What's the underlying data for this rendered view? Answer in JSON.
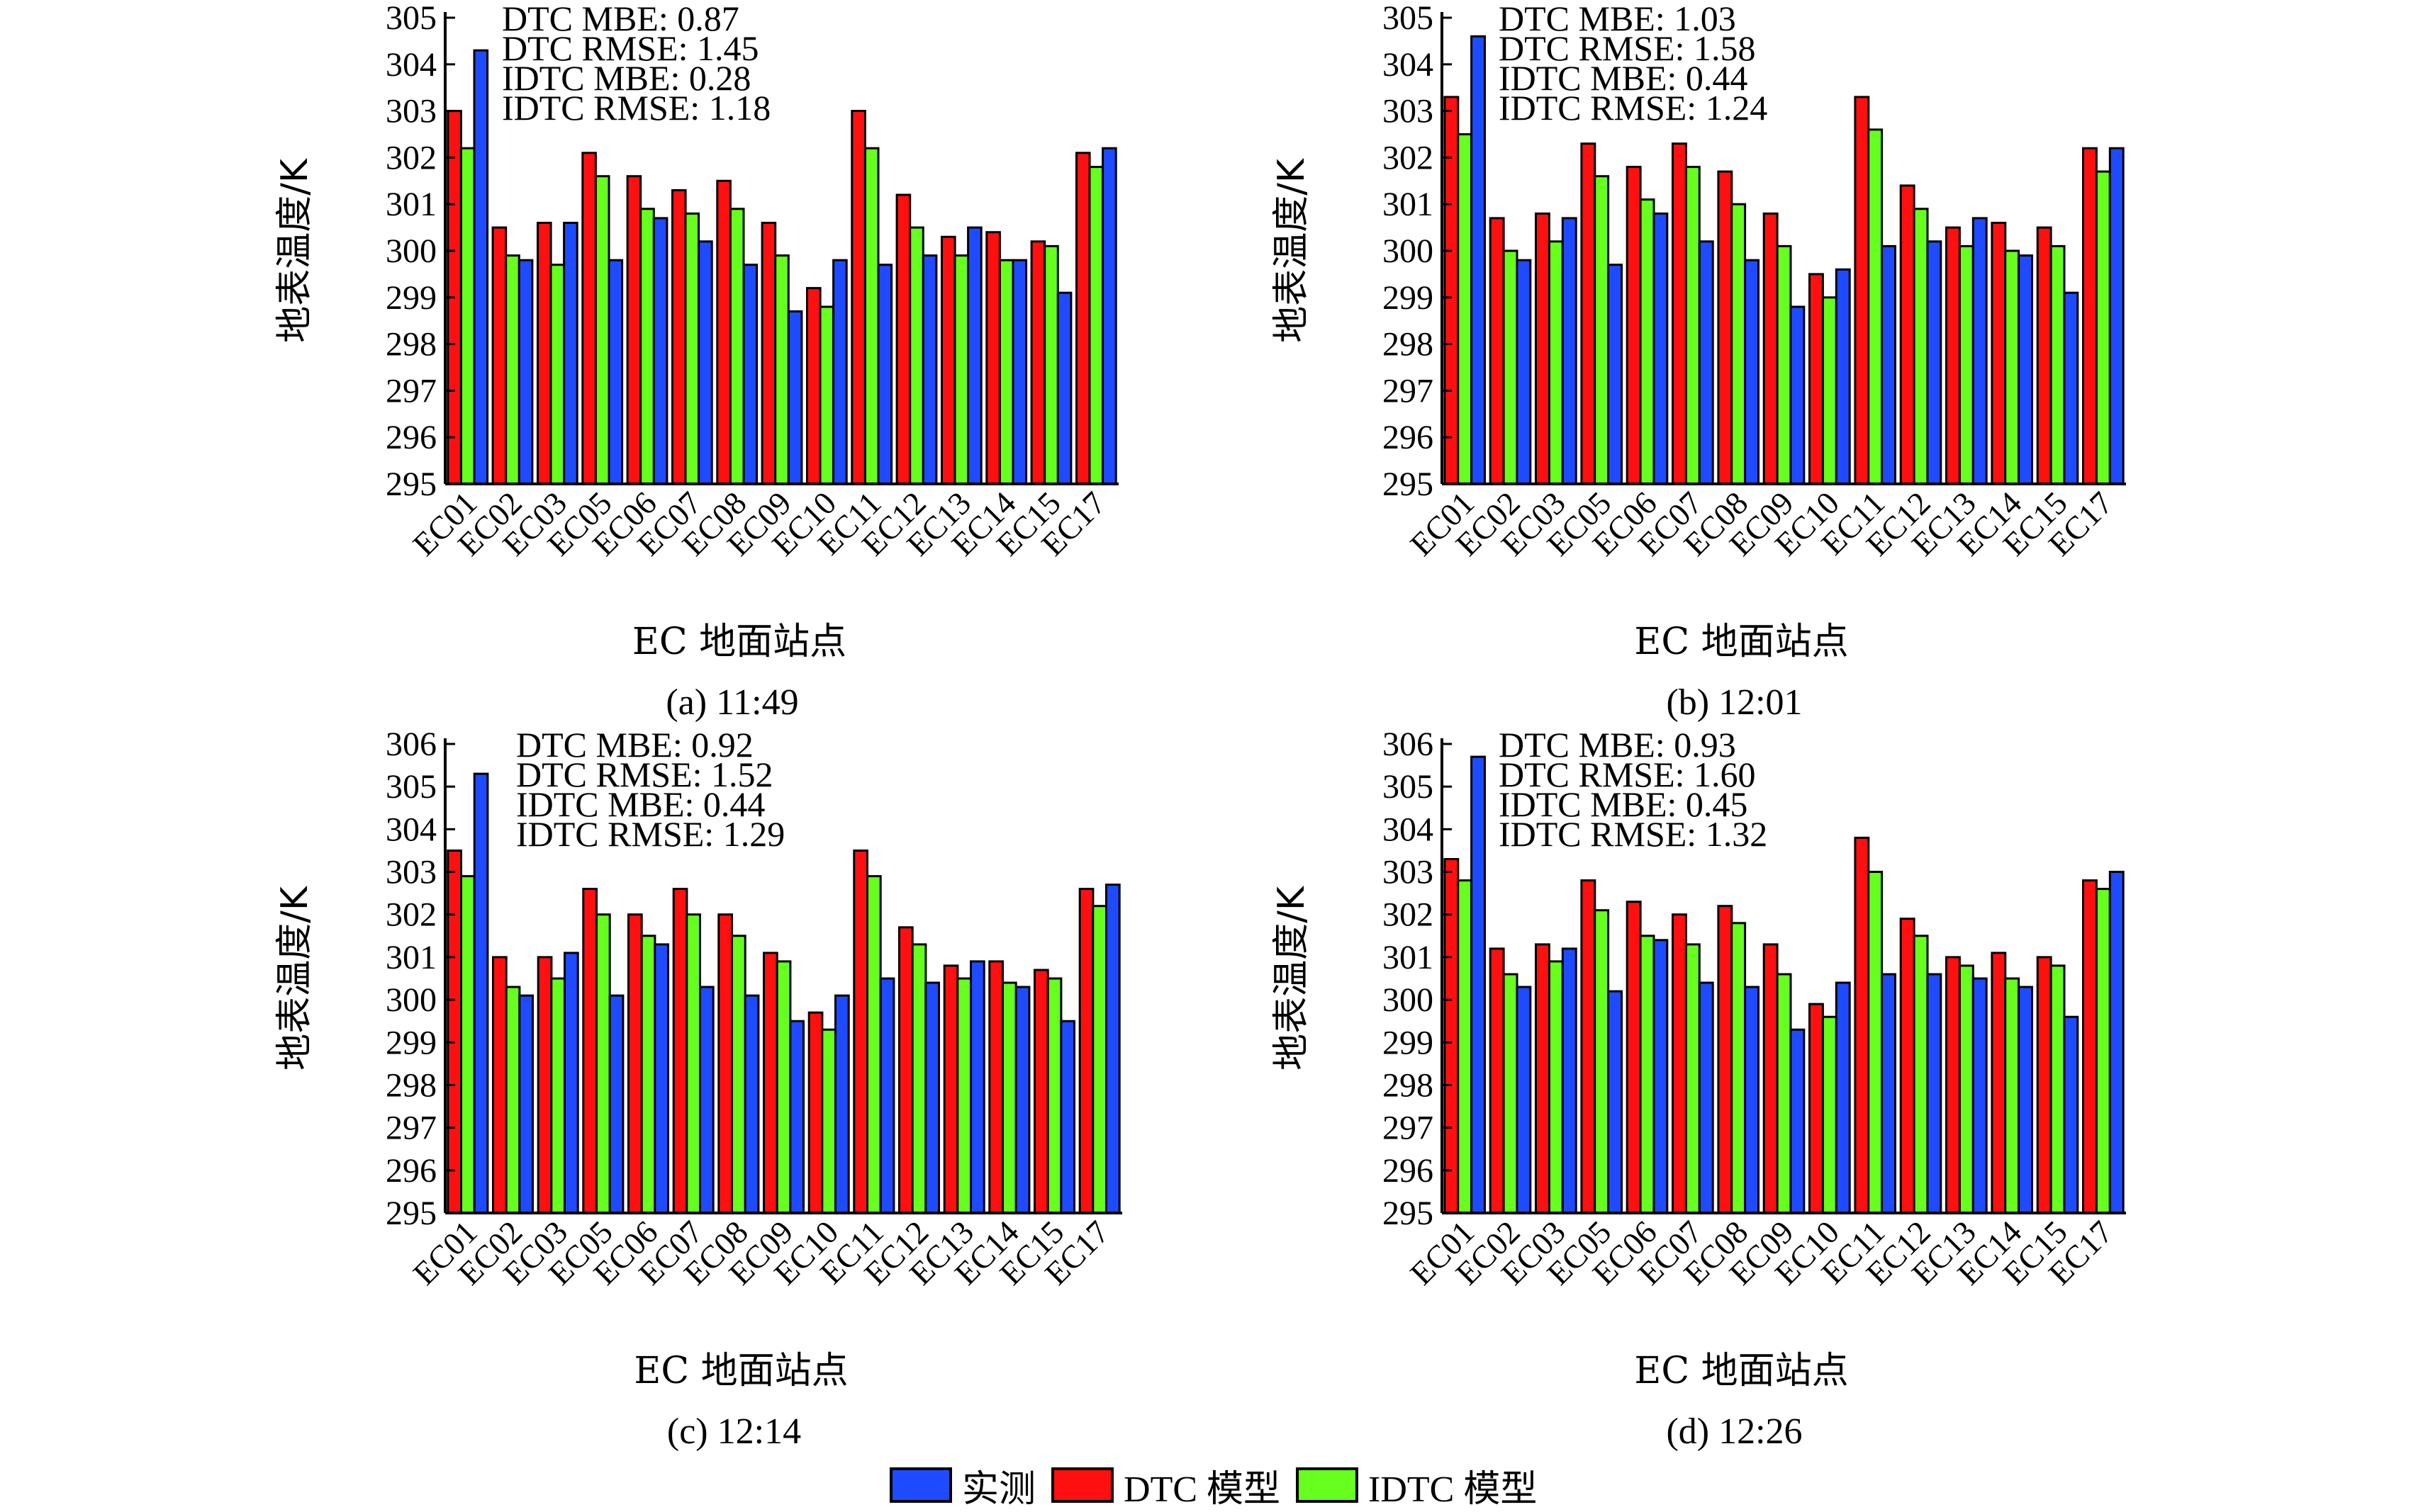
{
  "colors": {
    "measured": "#1e4bff",
    "dtc": "#ff1010",
    "idtc": "#66ff1e",
    "axis": "#000000"
  },
  "legend": {
    "measured": "实测",
    "dtc": "DTC 模型",
    "idtc": "IDTC 模型"
  },
  "chart_data": [
    {
      "type": "bar",
      "caption": "(a) 11:49",
      "xlabel": "EC 地面站点",
      "ylabel": "地表温度/K",
      "ylim": [
        295,
        305
      ],
      "yticks": [
        "295",
        "296",
        "297",
        "298",
        "299",
        "300",
        "301",
        "302",
        "303",
        "304",
        "305"
      ],
      "categories": [
        "EC01",
        "EC02",
        "EC03",
        "EC05",
        "EC06",
        "EC07",
        "EC08",
        "EC09",
        "EC10",
        "EC11",
        "EC12",
        "EC13",
        "EC14",
        "EC15",
        "EC17"
      ],
      "annotations": [
        "DTC MBE: 0.87",
        "DTC RMSE: 1.45",
        "IDTC MBE: 0.28",
        "IDTC RMSE: 1.18"
      ],
      "series": [
        {
          "name": "DTC 模型",
          "values": [
            303.0,
            300.5,
            300.6,
            302.1,
            301.6,
            301.3,
            301.5,
            300.6,
            299.2,
            303.0,
            301.2,
            300.3,
            300.4,
            300.2,
            302.1
          ]
        },
        {
          "name": "IDTC 模型",
          "values": [
            302.2,
            299.9,
            299.7,
            301.6,
            300.9,
            300.8,
            300.9,
            299.9,
            298.8,
            302.2,
            300.5,
            299.9,
            299.8,
            300.1,
            301.8
          ]
        },
        {
          "name": "实测",
          "values": [
            304.3,
            299.8,
            300.6,
            299.8,
            300.7,
            300.2,
            299.7,
            298.7,
            299.8,
            299.7,
            299.9,
            300.5,
            299.8,
            299.1,
            302.2
          ]
        }
      ]
    },
    {
      "type": "bar",
      "caption": "(b) 12:01",
      "xlabel": "EC 地面站点",
      "ylabel": "地表温度/K",
      "ylim": [
        295,
        305
      ],
      "yticks": [
        "295",
        "296",
        "297",
        "298",
        "299",
        "300",
        "301",
        "302",
        "303",
        "304",
        "305"
      ],
      "categories": [
        "EC01",
        "EC02",
        "EC03",
        "EC05",
        "EC06",
        "EC07",
        "EC08",
        "EC09",
        "EC10",
        "EC11",
        "EC12",
        "EC13",
        "EC14",
        "EC15",
        "EC17"
      ],
      "annotations": [
        "DTC MBE: 1.03",
        "DTC RMSE: 1.58",
        "IDTC MBE: 0.44",
        "IDTC RMSE: 1.24"
      ],
      "series": [
        {
          "name": "DTC 模型",
          "values": [
            303.3,
            300.7,
            300.8,
            302.3,
            301.8,
            302.3,
            301.7,
            300.8,
            299.5,
            303.3,
            301.4,
            300.5,
            300.6,
            300.5,
            302.2
          ]
        },
        {
          "name": "IDTC 模型",
          "values": [
            302.5,
            300.0,
            300.2,
            301.6,
            301.1,
            301.8,
            301.0,
            300.1,
            299.0,
            302.6,
            300.9,
            300.1,
            300.0,
            300.1,
            301.7
          ]
        },
        {
          "name": "实测",
          "values": [
            304.6,
            299.8,
            300.7,
            299.7,
            300.8,
            300.2,
            299.8,
            298.8,
            299.6,
            300.1,
            300.2,
            300.7,
            299.9,
            299.1,
            302.2
          ]
        }
      ]
    },
    {
      "type": "bar",
      "caption": "(c) 12:14",
      "xlabel": "EC 地面站点",
      "ylabel": "地表温度/K",
      "ylim": [
        295,
        306
      ],
      "yticks": [
        "295",
        "296",
        "297",
        "298",
        "299",
        "300",
        "301",
        "302",
        "303",
        "304",
        "305",
        "306"
      ],
      "categories": [
        "EC01",
        "EC02",
        "EC03",
        "EC05",
        "EC06",
        "EC07",
        "EC08",
        "EC09",
        "EC10",
        "EC11",
        "EC12",
        "EC13",
        "EC14",
        "EC15",
        "EC17"
      ],
      "annotations": [
        "DTC MBE: 0.92",
        "DTC RMSE: 1.52",
        "IDTC MBE: 0.44",
        "IDTC RMSE: 1.29"
      ],
      "series": [
        {
          "name": "DTC 模型",
          "values": [
            303.5,
            301.0,
            301.0,
            302.6,
            302.0,
            302.6,
            302.0,
            301.1,
            299.7,
            303.5,
            301.7,
            300.8,
            300.9,
            300.7,
            302.6
          ]
        },
        {
          "name": "IDTC 模型",
          "values": [
            302.9,
            300.3,
            300.5,
            302.0,
            301.5,
            302.0,
            301.5,
            300.9,
            299.3,
            302.9,
            301.3,
            300.5,
            300.4,
            300.5,
            302.2
          ]
        },
        {
          "name": "实测",
          "values": [
            305.3,
            300.1,
            301.1,
            300.1,
            301.3,
            300.3,
            300.1,
            299.5,
            300.1,
            300.5,
            300.4,
            300.9,
            300.3,
            299.5,
            302.7
          ]
        }
      ]
    },
    {
      "type": "bar",
      "caption": "(d) 12:26",
      "xlabel": "EC 地面站点",
      "ylabel": "地表温度/K",
      "ylim": [
        295,
        306
      ],
      "yticks": [
        "295",
        "296",
        "297",
        "298",
        "299",
        "300",
        "301",
        "302",
        "303",
        "304",
        "305",
        "306"
      ],
      "categories": [
        "EC01",
        "EC02",
        "EC03",
        "EC05",
        "EC06",
        "EC07",
        "EC08",
        "EC09",
        "EC10",
        "EC11",
        "EC12",
        "EC13",
        "EC14",
        "EC15",
        "EC17"
      ],
      "annotations": [
        "DTC MBE: 0.93",
        "DTC RMSE: 1.60",
        "IDTC MBE: 0.45",
        "IDTC RMSE: 1.32"
      ],
      "series": [
        {
          "name": "DTC 模型",
          "values": [
            303.3,
            301.2,
            301.3,
            302.8,
            302.3,
            302.0,
            302.2,
            301.3,
            299.9,
            303.8,
            301.9,
            301.0,
            301.1,
            301.0,
            302.8
          ]
        },
        {
          "name": "IDTC 模型",
          "values": [
            302.8,
            300.6,
            300.9,
            302.1,
            301.5,
            301.3,
            301.8,
            300.6,
            299.6,
            303.0,
            301.5,
            300.8,
            300.5,
            300.8,
            302.6
          ]
        },
        {
          "name": "实测",
          "values": [
            305.7,
            300.3,
            301.2,
            300.2,
            301.4,
            300.4,
            300.3,
            299.3,
            300.4,
            300.6,
            300.6,
            300.5,
            300.3,
            299.6,
            303.0
          ]
        }
      ]
    }
  ]
}
